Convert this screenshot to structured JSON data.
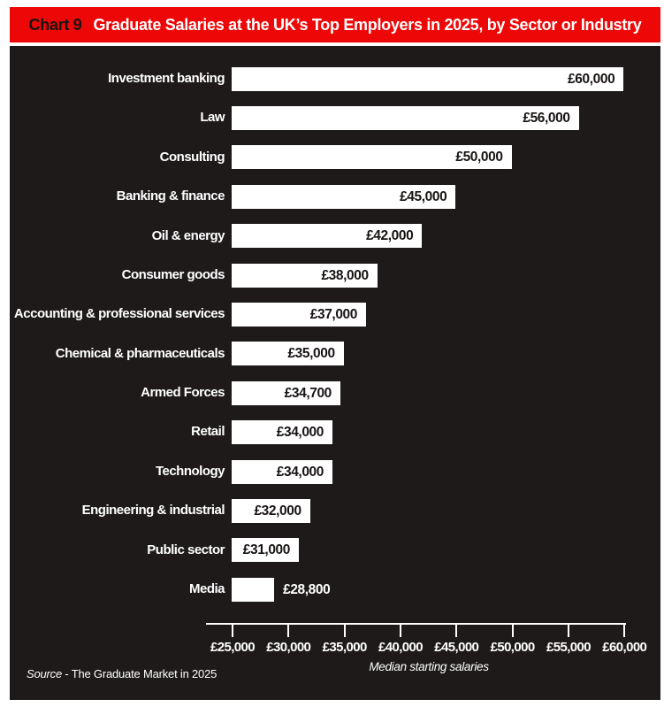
{
  "header": {
    "chart_label": "Chart 9",
    "title": "Graduate Salaries at the UK’s Top Employers in 2025, by Sector or Industry"
  },
  "chart_data": {
    "type": "bar",
    "orientation": "horizontal",
    "title": "Graduate Salaries at the UK’s Top Employers in 2025, by Sector or Industry",
    "categories": [
      "Investment banking",
      "Law",
      "Consulting",
      "Banking & finance",
      "Oil & energy",
      "Consumer goods",
      "Accounting & professional services",
      "Chemical & pharmaceuticals",
      "Armed Forces",
      "Retail",
      "Technology",
      "Engineering & industrial",
      "Public sector",
      "Media"
    ],
    "values": [
      60000,
      56000,
      50000,
      45000,
      42000,
      38000,
      37000,
      35000,
      34700,
      34000,
      34000,
      32000,
      31000,
      28800
    ],
    "value_labels": [
      "£60,000",
      "£56,000",
      "£50,000",
      "£45,000",
      "£42,000",
      "£38,000",
      "£37,000",
      "£35,000",
      "£34,700",
      "£34,000",
      "£34,000",
      "£32,000",
      "£31,000",
      "£28,800"
    ],
    "xlabel": "Median starting salaries",
    "x_ticks": [
      "£25,000",
      "£30,000",
      "£35,000",
      "£40,000",
      "£45,000",
      "£50,000",
      "£55,000",
      "£60,000"
    ],
    "xlim": [
      25000,
      60000
    ],
    "grid": false,
    "legend": "none",
    "bar_color": "#ffffff",
    "background": "#1e1a1a"
  },
  "footer": {
    "source_prefix": "Source",
    "source_rest": " - The Graduate Market in 2025"
  },
  "colors": {
    "banner_red": "#ee0707",
    "panel_black": "#1e1a1a",
    "bar_white": "#ffffff",
    "value_text": "#191414"
  }
}
